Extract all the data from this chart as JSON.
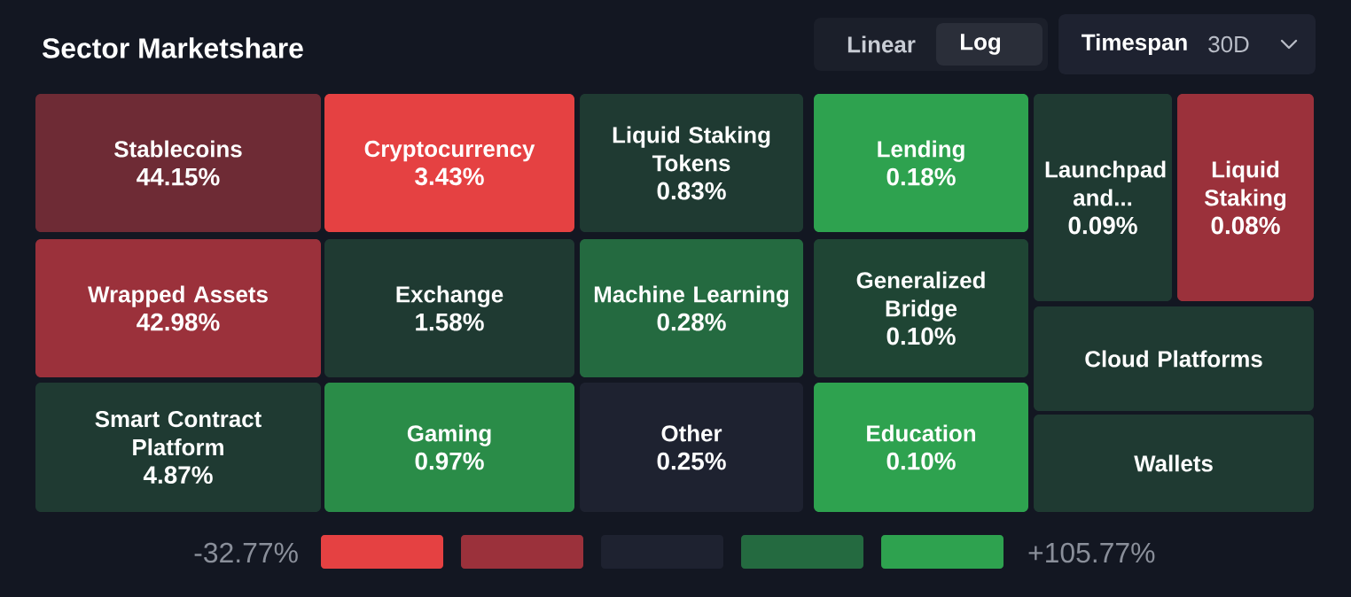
{
  "chart_data": {
    "type": "other",
    "title": "Sector Marketshare",
    "categories": [
      "Stablecoins",
      "Wrapped Assets",
      "Smart Contract Platform",
      "Cryptocurrency",
      "Exchange",
      "Gaming",
      "Liquid Staking Tokens",
      "Machine Learning",
      "Other",
      "Lending",
      "Generalized Bridge",
      "Education",
      "Launchpad and...",
      "Liquid Staking",
      "Cloud Platforms",
      "Wallets"
    ],
    "values": [
      44.15,
      42.98,
      4.87,
      3.43,
      1.58,
      0.97,
      0.83,
      0.28,
      0.25,
      0.18,
      0.1,
      0.1,
      0.09,
      0.08,
      null,
      null
    ],
    "value_labels": [
      "44.15%",
      "42.98%",
      "4.87%",
      "3.43%",
      "1.58%",
      "0.97%",
      "0.83%",
      "0.28%",
      "0.25%",
      "0.18%",
      "0.10%",
      "0.10%",
      "0.09%",
      "0.08%",
      null,
      null
    ],
    "colors": [
      "#6e2b35",
      "#9b313b",
      "#1f3a32",
      "#e54142",
      "#1f3a32",
      "#2a8c48",
      "#1f3a32",
      "#246a40",
      "#1e2230",
      "#2ea24f",
      "#1f4534",
      "#2ea24f",
      "#1f3a32",
      "#9b313b",
      "#1f3a32",
      "#1f3a32"
    ],
    "annotations": [
      "Linear",
      "Log",
      "Timespan",
      "30D",
      "-32.77%",
      "+105.77%"
    ]
  }
}
